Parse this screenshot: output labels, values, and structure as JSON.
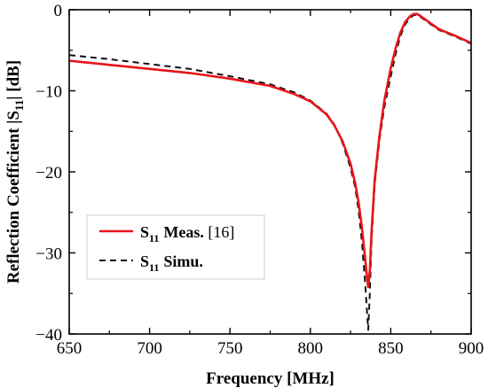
{
  "chart_data": {
    "type": "line",
    "xlabel": "Frequency [MHz]",
    "ylabel_parts": [
      "Reflection Coefficient |S",
      "11",
      "| [dB]"
    ],
    "xlim": [
      650,
      900
    ],
    "ylim": [
      -40,
      0
    ],
    "xticks": [
      650,
      700,
      750,
      800,
      850,
      900
    ],
    "yticks": [
      0,
      -10,
      -20,
      -30,
      -40
    ],
    "grid": false,
    "legend_position": "lower-left",
    "series": [
      {
        "name": "S11 Meas. [16]",
        "legend_sub": "11",
        "legend_bold": "Meas.",
        "legend_ref": " [16]",
        "color": "#e8141b",
        "dash": "solid",
        "x": [
          650,
          675,
          700,
          725,
          750,
          775,
          790,
          800,
          810,
          815,
          820,
          825,
          828,
          830,
          832,
          834,
          835,
          836,
          837,
          838,
          840,
          843,
          846,
          850,
          853,
          856,
          859,
          862,
          864,
          866,
          868,
          870,
          875,
          880,
          890,
          900
        ],
        "y": [
          -6.3,
          -6.8,
          -7.3,
          -7.8,
          -8.5,
          -9.4,
          -10.4,
          -11.3,
          -12.9,
          -14.3,
          -16.2,
          -19.0,
          -21.5,
          -23.8,
          -26.8,
          -30.5,
          -32.5,
          -34.2,
          -32.2,
          -27.5,
          -21.0,
          -15.5,
          -11.2,
          -7.2,
          -4.8,
          -2.8,
          -1.5,
          -0.8,
          -0.55,
          -0.5,
          -0.7,
          -1.0,
          -1.7,
          -2.4,
          -3.2,
          -4.1
        ]
      },
      {
        "name": "S11 Simu.",
        "legend_sub": "11",
        "legend_bold": "Simu.",
        "legend_ref": "",
        "color": "#111111",
        "dash": "dashed",
        "x": [
          650,
          675,
          700,
          725,
          750,
          775,
          790,
          800,
          810,
          815,
          820,
          825,
          828,
          830,
          832,
          834,
          835,
          836,
          837,
          838,
          840,
          843,
          846,
          850,
          853,
          856,
          859,
          862,
          864,
          866,
          868,
          870,
          875,
          880,
          890,
          900
        ],
        "y": [
          -5.6,
          -6.1,
          -6.7,
          -7.3,
          -8.2,
          -9.2,
          -10.2,
          -11.2,
          -12.8,
          -14.2,
          -16.4,
          -19.5,
          -22.0,
          -24.8,
          -28.5,
          -33.5,
          -36.5,
          -39.5,
          -35.0,
          -28.5,
          -21.5,
          -16.0,
          -12.0,
          -8.2,
          -5.5,
          -3.2,
          -1.8,
          -1.0,
          -0.7,
          -0.6,
          -0.8,
          -1.1,
          -1.8,
          -2.5,
          -3.3,
          -4.2
        ]
      }
    ]
  }
}
